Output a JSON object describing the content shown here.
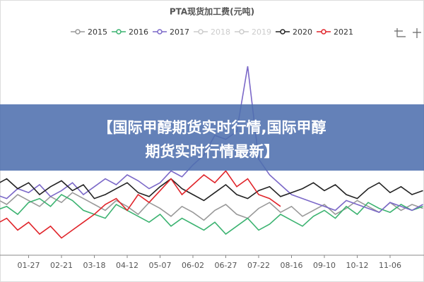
{
  "chart_data": {
    "type": "line",
    "title": "PTA现货加工费(元吨)",
    "categories": [
      null,
      null,
      null,
      "01-27",
      null,
      null,
      "02-21",
      null,
      null,
      "03-18",
      null,
      null,
      "04-12",
      null,
      null,
      "05-07",
      null,
      null,
      "06-02",
      null,
      null,
      "06-27",
      null,
      null,
      "07-22",
      null,
      null,
      "08-16",
      null,
      null,
      "09-10",
      null,
      null,
      "10-12",
      null,
      null,
      "11-06",
      null,
      null,
      null
    ],
    "ylim": [
      0,
      100
    ],
    "series": [
      {
        "name": "2015",
        "color": "#999999",
        "visible": true,
        "values": [
          28,
          25,
          30,
          27,
          24,
          29,
          26,
          31,
          28,
          25,
          22,
          27,
          24,
          20,
          26,
          23,
          19,
          24,
          21,
          17,
          22,
          25,
          20,
          18,
          23,
          26,
          21,
          24,
          19,
          22,
          25,
          20,
          23,
          27,
          24,
          21,
          26,
          22,
          25,
          23
        ]
      },
      {
        "name": "2016",
        "color": "#3cb371",
        "visible": true,
        "values": [
          22,
          24,
          20,
          26,
          28,
          24,
          30,
          27,
          22,
          20,
          18,
          25,
          22,
          19,
          16,
          20,
          14,
          18,
          15,
          12,
          16,
          10,
          14,
          18,
          12,
          15,
          20,
          17,
          14,
          19,
          22,
          18,
          24,
          20,
          26,
          23,
          21,
          25,
          22,
          24
        ]
      },
      {
        "name": "2017",
        "color": "#7b68c8",
        "visible": true,
        "values": [
          30,
          28,
          33,
          31,
          35,
          29,
          32,
          36,
          30,
          34,
          38,
          35,
          40,
          37,
          33,
          36,
          42,
          39,
          45,
          50,
          60,
          58,
          62,
          95,
          48,
          40,
          35,
          30,
          28,
          26,
          24,
          22,
          27,
          25,
          23,
          21,
          26,
          24,
          22,
          25
        ]
      },
      {
        "name": "2018",
        "color": "#cccccc",
        "visible": false
      },
      {
        "name": "2019",
        "color": "#cccccc",
        "visible": false
      },
      {
        "name": "2020",
        "color": "#222222",
        "visible": true,
        "values": [
          35,
          38,
          33,
          36,
          30,
          34,
          37,
          32,
          35,
          28,
          30,
          33,
          36,
          31,
          29,
          34,
          38,
          33,
          30,
          27,
          31,
          35,
          30,
          28,
          32,
          34,
          29,
          31,
          33,
          36,
          32,
          35,
          30,
          28,
          33,
          36,
          31,
          34,
          30,
          32
        ]
      },
      {
        "name": "2021",
        "color": "#e0242a",
        "visible": true,
        "values": [
          15,
          18,
          12,
          16,
          10,
          14,
          8,
          12,
          16,
          20,
          25,
          28,
          22,
          30,
          26,
          32,
          38,
          30,
          35,
          40,
          36,
          42,
          34,
          38,
          30,
          28,
          24,
          null,
          null,
          null,
          null,
          null,
          null,
          null,
          null,
          null,
          null,
          null,
          null,
          null
        ]
      }
    ]
  },
  "banner": {
    "lines": [
      "【国际甲醇期货实时行情,国际甲醇",
      "期货实时行情最新】"
    ]
  }
}
